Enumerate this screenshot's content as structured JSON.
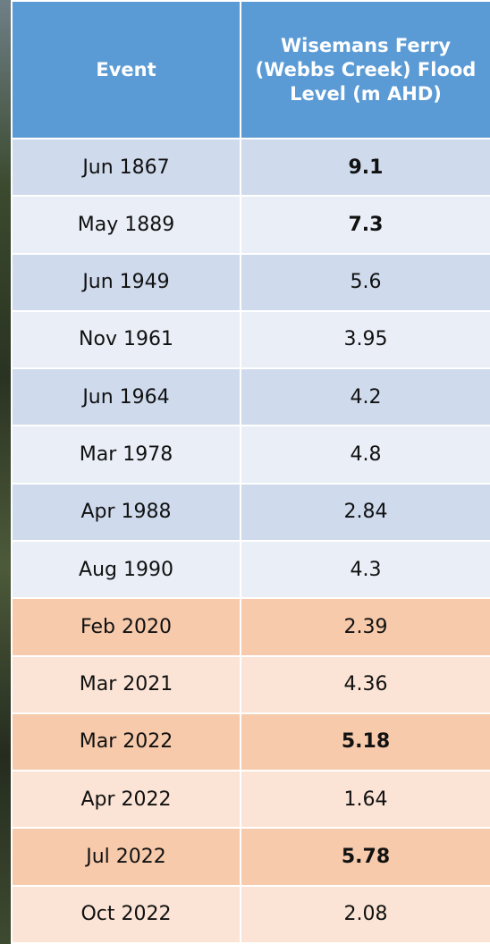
{
  "table": {
    "header": [
      "Event",
      "Wisemans Ferry (Webbs Creek) Flood Level (m AHD)"
    ],
    "rows": [
      [
        "Jun 1867",
        "9.1"
      ],
      [
        "May 1889",
        "7.3"
      ],
      [
        "Jun 1949",
        "5.6"
      ],
      [
        "Nov 1961",
        "3.95"
      ],
      [
        "Jun 1964",
        "4.2"
      ],
      [
        "Mar 1978",
        "4.8"
      ],
      [
        "Apr 1988",
        "2.84"
      ],
      [
        "Aug 1990",
        "4.3"
      ],
      [
        "Feb 2020",
        "2.39"
      ],
      [
        "Mar 2021",
        "4.36"
      ],
      [
        "Mar 2022",
        "5.18"
      ],
      [
        "Apr 2022",
        "1.64"
      ],
      [
        "Jul 2022",
        "5.78"
      ],
      [
        "Oct 2022",
        "2.08"
      ]
    ]
  }
}
